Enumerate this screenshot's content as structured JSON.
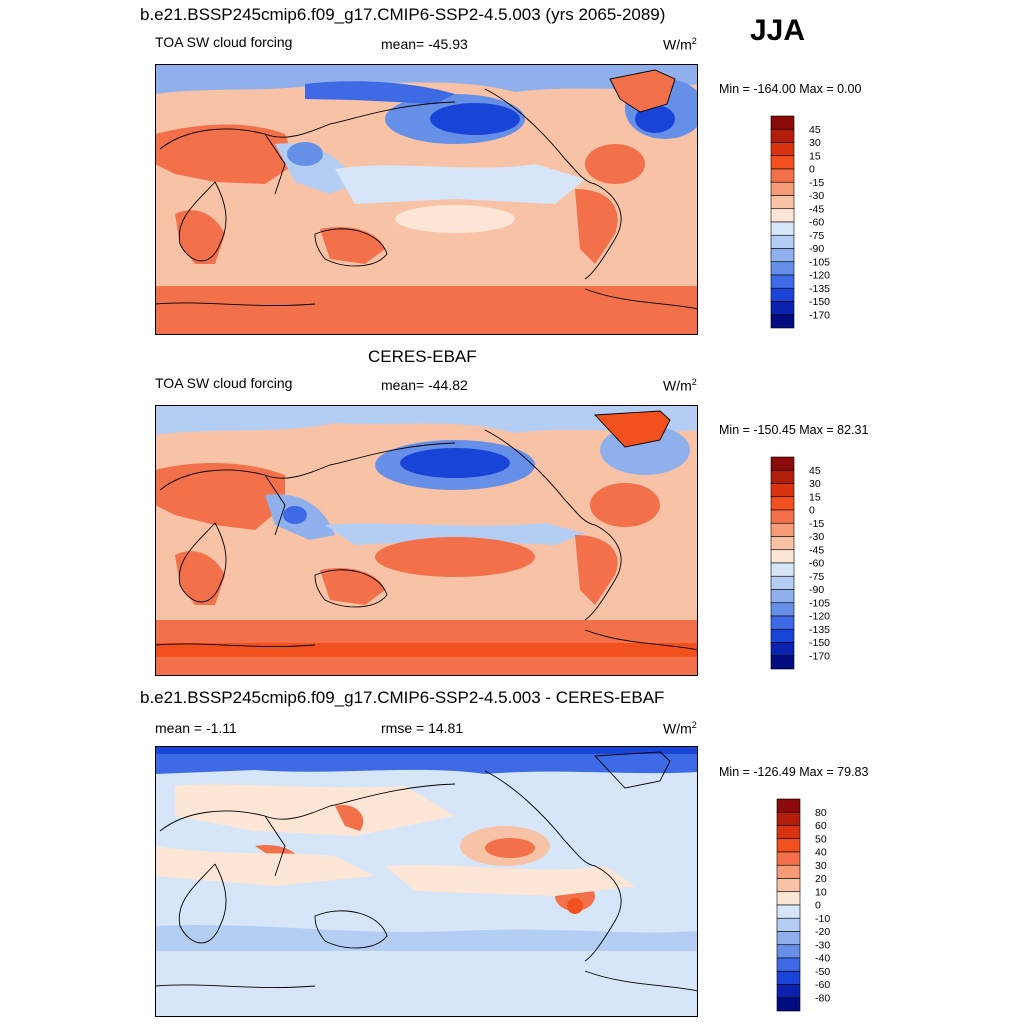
{
  "season": "JJA",
  "panels": [
    {
      "title": "b.e21.BSSP245cmip6.f09_g17.CMIP6-SSP2-4.5.003 (yrs 2065-2089)",
      "left_label": "TOA SW cloud forcing",
      "center_label": "mean= -45.93",
      "units": "W/m",
      "units_sup": "2",
      "minmax": "Min = -164.00 Max =   0.00",
      "colorbar": {
        "labels": [
          "45",
          "30",
          "15",
          "0",
          "-15",
          "-30",
          "-45",
          "-60",
          "-75",
          "-90",
          "-105",
          "-120",
          "-135",
          "-150",
          "-170"
        ],
        "colors": [
          "#8b0a0a",
          "#b31d0c",
          "#d9340f",
          "#f2501f",
          "#f2704a",
          "#f59b77",
          "#f8c2a6",
          "#fde6d5",
          "#d6e6f8",
          "#b4cdf2",
          "#8fb0ec",
          "#6690e8",
          "#3e6ae6",
          "#1a44d8",
          "#0b22b0",
          "#000c80"
        ]
      }
    },
    {
      "title": "CERES-EBAF",
      "left_label": "TOA SW cloud forcing",
      "center_label": "mean= -44.82",
      "units": "W/m",
      "units_sup": "2",
      "minmax": "Min = -150.45 Max =  82.31",
      "colorbar": {
        "labels": [
          "45",
          "30",
          "15",
          "0",
          "-15",
          "-30",
          "-45",
          "-60",
          "-75",
          "-90",
          "-105",
          "-120",
          "-135",
          "-150",
          "-170"
        ],
        "colors": [
          "#8b0a0a",
          "#b31d0c",
          "#d9340f",
          "#f2501f",
          "#f2704a",
          "#f59b77",
          "#f8c2a6",
          "#fde6d5",
          "#d6e6f8",
          "#b4cdf2",
          "#8fb0ec",
          "#6690e8",
          "#3e6ae6",
          "#1a44d8",
          "#0b22b0",
          "#000c80"
        ]
      }
    },
    {
      "title": "b.e21.BSSP245cmip6.f09_g17.CMIP6-SSP2-4.5.003 - CERES-EBAF",
      "left_label": "mean =  -1.11",
      "center_label": "rmse =  14.81",
      "units": "W/m",
      "units_sup": "2",
      "minmax": "Min = -126.49 Max =  79.83",
      "colorbar": {
        "labels": [
          "80",
          "60",
          "50",
          "40",
          "30",
          "20",
          "10",
          "0",
          "-10",
          "-20",
          "-30",
          "-40",
          "-50",
          "-60",
          "-80"
        ],
        "colors": [
          "#8b0a0a",
          "#b31d0c",
          "#d9340f",
          "#f2501f",
          "#f2704a",
          "#f59b77",
          "#f8c2a6",
          "#fde6d5",
          "#d6e6f8",
          "#b4cdf2",
          "#8fb0ec",
          "#6690e8",
          "#3e6ae6",
          "#1a44d8",
          "#0b22b0",
          "#000c80"
        ]
      }
    }
  ]
}
